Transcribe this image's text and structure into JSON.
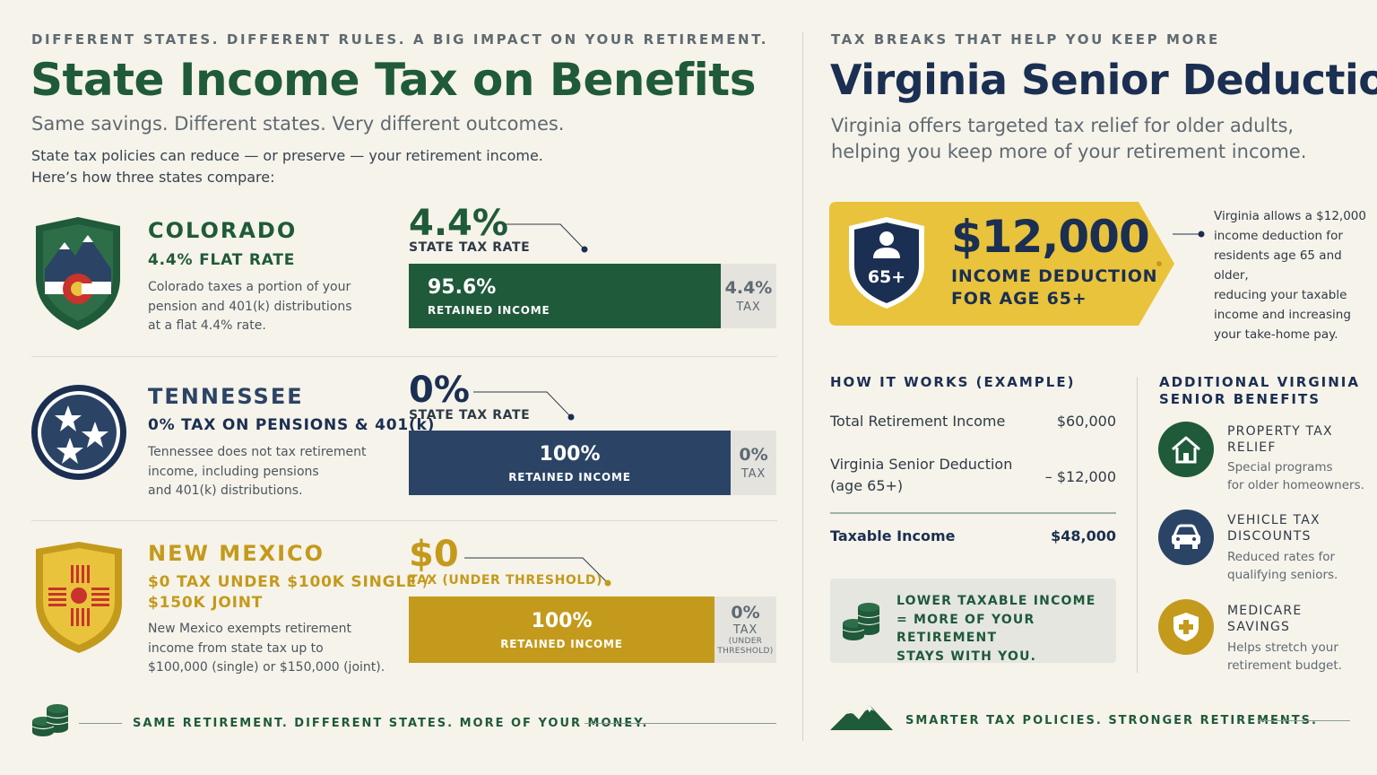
{
  "left": {
    "kicker": "DIFFERENT STATES. DIFFERENT RULES. A BIG IMPACT ON YOUR RETIREMENT.",
    "title": "State Income Tax on Benefits",
    "subtitle": "Same savings. Different states. Very different outcomes.",
    "intro_1": "State tax policies can reduce — or preserve — your retirement income.",
    "intro_2": "Here’s how three states compare:",
    "states": [
      {
        "name": "COLORADO",
        "rate_line": "4.4% FLAT RATE",
        "desc_1": "Colorado taxes a portion of your",
        "desc_2": "pension and 401(k) distributions",
        "desc_3": "at a flat 4.4% rate.",
        "big_rate": "4.4%",
        "big_rate_label": "STATE TAX RATE",
        "retained_pct": "95.6%",
        "retained_label": "RETAINED INCOME",
        "tax_pct": "4.4%",
        "tax_label": "TAX",
        "retained_fraction": 0.956,
        "color": "#1f5a3a"
      },
      {
        "name": "TENNESSEE",
        "rate_line": "0% TAX ON PENSIONS & 401(k)",
        "desc_1": "Tennessee does not tax retirement",
        "desc_2": "income, including pensions",
        "desc_3": "and 401(k) distributions.",
        "big_rate": "0%",
        "big_rate_label": "STATE TAX RATE",
        "retained_pct": "100%",
        "retained_label": "RETAINED INCOME",
        "tax_pct": "0%",
        "tax_label": "TAX",
        "retained_fraction": 1.0,
        "color": "#2b4466"
      },
      {
        "name": "NEW MEXICO",
        "rate_line_1": "$0 TAX UNDER $100K SINGLE /",
        "rate_line_2": "$150K JOINT",
        "desc_1": "New Mexico exempts retirement",
        "desc_2": "income from state tax up to",
        "desc_3": "$100,000 (single) or $150,000 (joint).",
        "big_rate": "$0",
        "big_rate_label": "TAX (UNDER THRESHOLD)",
        "retained_pct": "100%",
        "retained_label": "RETAINED INCOME",
        "tax_pct": "0%",
        "tax_label": "TAX",
        "tax_note_1": "(UNDER",
        "tax_note_2": "THRESHOLD)",
        "retained_fraction": 1.0,
        "color": "#c49a1c"
      }
    ],
    "footer": "SAME RETIREMENT.  DIFFERENT STATES.  MORE OF YOUR MONEY."
  },
  "right": {
    "kicker": "TAX BREAKS THAT HELP YOU KEEP MORE",
    "title": "Virginia Senior Deductions",
    "subtitle_1": "Virginia offers targeted tax relief for older adults,",
    "subtitle_2": "helping you keep more of your retirement income.",
    "tag": {
      "badge": "65+",
      "amount": "$12,000",
      "line_1": "INCOME DEDUCTION",
      "line_2": "FOR AGE 65+"
    },
    "callout": [
      "Virginia allows a $12,000",
      "income deduction for",
      "residents age 65 and older,",
      "reducing your taxable",
      "income and increasing",
      "your take-home pay."
    ],
    "how_it_works": {
      "heading": "HOW IT WORKS (EXAMPLE)",
      "row1_label": "Total Retirement Income",
      "row1_value": "$60,000",
      "row2_label_1": "Virginia Senior Deduction",
      "row2_label_2": "(age 65+)",
      "row2_value": "– $12,000",
      "row3_label": "Taxable Income",
      "row3_value": "$48,000"
    },
    "note": {
      "line_1": "LOWER TAXABLE INCOME",
      "line_2": "= MORE OF YOUR RETIREMENT",
      "line_3": "STAYS WITH YOU."
    },
    "benefits": {
      "heading_1": "ADDITIONAL VIRGINIA",
      "heading_2": "SENIOR BENEFITS",
      "items": [
        {
          "title_1": "PROPERTY TAX",
          "title_2": "RELIEF",
          "desc_1": "Special programs",
          "desc_2": "for older homeowners.",
          "icon": "house-icon"
        },
        {
          "title_1": "VEHICLE TAX",
          "title_2": "DISCOUNTS",
          "desc_1": "Reduced rates for",
          "desc_2": "qualifying seniors.",
          "icon": "car-icon"
        },
        {
          "title_1": "MEDICARE",
          "title_2": "SAVINGS",
          "desc_1": "Helps stretch your",
          "desc_2": "retirement budget.",
          "icon": "medical-shield-icon"
        }
      ]
    },
    "footer": "SMARTER TAX POLICIES. STRONGER RETIREMENTS."
  },
  "colors": {
    "green": "#1f5a3a",
    "navy": "#1b2f52",
    "gold": "#c49a1c",
    "yellow": "#e9c33b",
    "background": "#f6f3ea"
  }
}
